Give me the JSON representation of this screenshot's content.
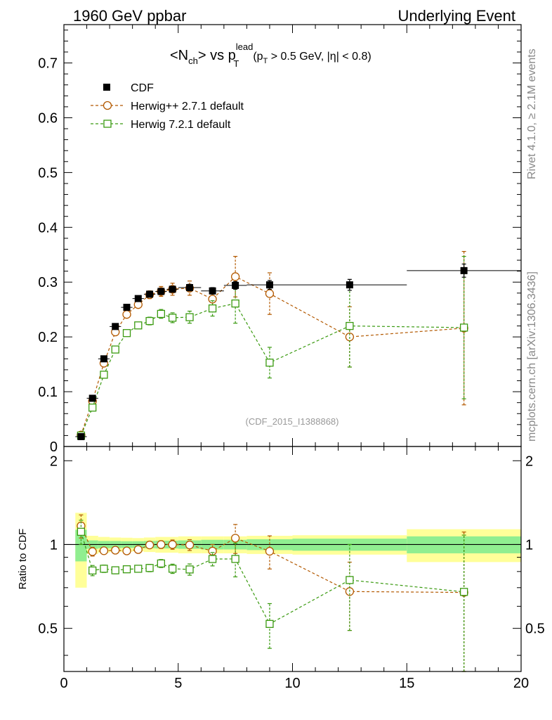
{
  "header": {
    "left": "1960 GeV ppbar",
    "right": "Underlying Event"
  },
  "side_text": {
    "rivet": "Rivet 4.1.0, ≥ 2.1M events",
    "mcplots": "mcplots.cern.ch [arXiv:1306.3436]"
  },
  "chart_data": {
    "type": "scatter",
    "title": {
      "main": "<N",
      "sub_ch": "ch",
      "main2": "> vs p",
      "sup_lead": "lead",
      "sub_T": "T",
      "cut1": "(p",
      "cut_T": "T",
      "cut2": " > 0.5 GeV, |",
      "cut_eta": "η",
      "cut3": "| < 0.8)"
    },
    "analysis_label": "(CDF_2015_I1388868)",
    "xlim": [
      0,
      20
    ],
    "upper_ylim": [
      0,
      0.77
    ],
    "ratio_ylim": [
      0.35,
      2.25
    ],
    "ratio_ylabel": "Ratio to CDF",
    "x_ticks": [
      "0",
      "5",
      "10",
      "15",
      "20"
    ],
    "upper_y_ticks": [
      "0",
      "0.1",
      "0.2",
      "0.3",
      "0.4",
      "0.5",
      "0.6",
      "0.7"
    ],
    "ratio_y_ticks": [
      "0.5",
      "1",
      "2"
    ],
    "legend": [
      "CDF",
      "Herwig++ 2.7.1 default",
      "Herwig 7.2.1 default"
    ],
    "series": [
      {
        "name": "CDF",
        "color": "#000000",
        "marker": "filled-square",
        "x": [
          0.75,
          1.25,
          1.75,
          2.25,
          2.75,
          3.25,
          3.75,
          4.25,
          4.75,
          5.5,
          6.5,
          7.5,
          9.0,
          12.5,
          17.5
        ],
        "xerr": [
          0.25,
          0.25,
          0.25,
          0.25,
          0.25,
          0.25,
          0.25,
          0.25,
          0.25,
          0.5,
          0.5,
          0.5,
          1.0,
          2.5,
          2.5
        ],
        "y": [
          0.018,
          0.088,
          0.16,
          0.219,
          0.254,
          0.27,
          0.278,
          0.283,
          0.287,
          0.29,
          0.284,
          0.294,
          0.295,
          0.295,
          0.321
        ],
        "yerr": [
          0.001,
          0.002,
          0.002,
          0.003,
          0.003,
          0.003,
          0.004,
          0.004,
          0.005,
          0.006,
          0.006,
          0.007,
          0.008,
          0.01,
          0.012
        ]
      },
      {
        "name": "Herwig++ 2.7.1 default",
        "color": "#b35900",
        "marker": "open-circle",
        "x": [
          0.75,
          1.25,
          1.75,
          2.25,
          2.75,
          3.25,
          3.75,
          4.25,
          4.75,
          5.5,
          6.5,
          7.5,
          9.0,
          12.5,
          17.5
        ],
        "y": [
          0.021,
          0.083,
          0.152,
          0.209,
          0.241,
          0.259,
          0.277,
          0.283,
          0.287,
          0.289,
          0.269,
          0.31,
          0.279,
          0.2,
          0.216
        ],
        "yerr": [
          0.002,
          0.003,
          0.004,
          0.005,
          0.005,
          0.006,
          0.007,
          0.009,
          0.011,
          0.013,
          0.015,
          0.037,
          0.038,
          0.055,
          0.14
        ]
      },
      {
        "name": "Herwig 7.2.1 default",
        "color": "#3a9a10",
        "marker": "open-square",
        "x": [
          0.75,
          1.25,
          1.75,
          2.25,
          2.75,
          3.25,
          3.75,
          4.25,
          4.75,
          5.5,
          6.5,
          7.5,
          9.0,
          12.5,
          17.5
        ],
        "y": [
          0.02,
          0.071,
          0.131,
          0.177,
          0.207,
          0.221,
          0.229,
          0.242,
          0.235,
          0.236,
          0.252,
          0.261,
          0.153,
          0.22,
          0.217
        ],
        "yerr": [
          0.002,
          0.003,
          0.004,
          0.005,
          0.005,
          0.006,
          0.007,
          0.008,
          0.009,
          0.011,
          0.014,
          0.036,
          0.028,
          0.075,
          0.13
        ]
      }
    ],
    "ratio_bands": {
      "inner_color": "#90ee90",
      "outer_color": "#ffff99",
      "bins": [
        {
          "x0": 0.5,
          "x1": 1.0,
          "inner": 0.13,
          "outer": 0.3
        },
        {
          "x0": 1.0,
          "x1": 1.5,
          "inner": 0.035,
          "outer": 0.075
        },
        {
          "x0": 1.5,
          "x1": 2.0,
          "inner": 0.03,
          "outer": 0.065
        },
        {
          "x0": 2.0,
          "x1": 2.5,
          "inner": 0.03,
          "outer": 0.06
        },
        {
          "x0": 2.5,
          "x1": 3.0,
          "inner": 0.028,
          "outer": 0.058
        },
        {
          "x0": 3.0,
          "x1": 3.5,
          "inner": 0.028,
          "outer": 0.055
        },
        {
          "x0": 3.5,
          "x1": 4.0,
          "inner": 0.03,
          "outer": 0.06
        },
        {
          "x0": 4.0,
          "x1": 5.0,
          "inner": 0.032,
          "outer": 0.065
        },
        {
          "x0": 5.0,
          "x1": 6.0,
          "inner": 0.035,
          "outer": 0.07
        },
        {
          "x0": 6.0,
          "x1": 7.0,
          "inner": 0.04,
          "outer": 0.07
        },
        {
          "x0": 7.0,
          "x1": 8.0,
          "inner": 0.04,
          "outer": 0.07
        },
        {
          "x0": 8.0,
          "x1": 10.0,
          "inner": 0.045,
          "outer": 0.075
        },
        {
          "x0": 10.0,
          "x1": 15.0,
          "inner": 0.05,
          "outer": 0.08
        },
        {
          "x0": 15.0,
          "x1": 20.0,
          "inner": 0.07,
          "outer": 0.135
        }
      ]
    }
  }
}
